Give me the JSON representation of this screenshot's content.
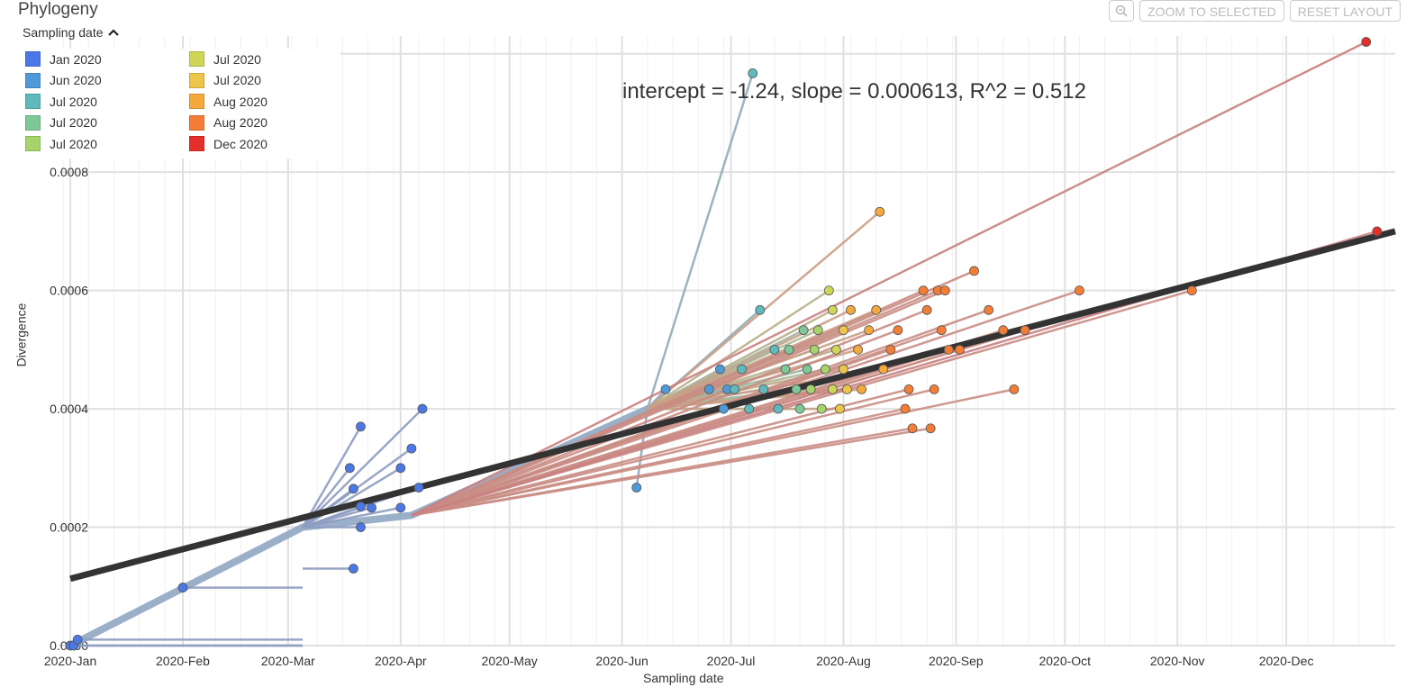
{
  "header": {
    "title": "Phylogeny",
    "zoom_icon": "magnifier-minus-icon",
    "zoom_selected_label": "ZOOM TO SELECTED",
    "reset_layout_label": "RESET LAYOUT"
  },
  "legend": {
    "toggle_label": "Sampling date",
    "toggle_icon": "chevron-up-icon",
    "items": [
      {
        "label": "Jan 2020",
        "color": "#4b78e6"
      },
      {
        "label": "Jun 2020",
        "color": "#4e9ad8"
      },
      {
        "label": "Jul 2020",
        "color": "#5fb9bd"
      },
      {
        "label": "Jul 2020",
        "color": "#7ec897"
      },
      {
        "label": "Jul 2020",
        "color": "#a6d46a"
      },
      {
        "label": "Jul 2020",
        "color": "#cfd556"
      },
      {
        "label": "Jul 2020",
        "color": "#edc54a"
      },
      {
        "label": "Aug 2020",
        "color": "#f5a93d"
      },
      {
        "label": "Aug 2020",
        "color": "#f47d35"
      },
      {
        "label": "Dec 2020",
        "color": "#e3302a"
      }
    ]
  },
  "regression_label": "intercept = -1.24, slope = 0.000613, R^2 = 0.512",
  "chart_data": {
    "type": "scatter",
    "title": "",
    "xlabel": "Sampling date",
    "ylabel": "Divergence",
    "x_ticks": [
      "2020-Jan",
      "2020-Feb",
      "2020-Mar",
      "2020-Apr",
      "2020-May",
      "2020-Jun",
      "2020-Jul",
      "2020-Aug",
      "2020-Sep",
      "2020-Oct",
      "2020-Nov",
      "2020-Dec"
    ],
    "y_ticks": [
      "0.0000",
      "0.0002",
      "0.0004",
      "0.0006",
      "0.0008",
      "0.0010"
    ],
    "xlim": [
      "2019-12-30",
      "2020-12-31"
    ],
    "ylim": [
      0,
      0.00103
    ],
    "grid": true,
    "regression": {
      "intercept": -1.24,
      "slope": 0.000613,
      "r2": 0.512,
      "line": [
        [
          "2020-01-01",
          0.000113
        ],
        [
          "2020-12-31",
          0.0007
        ]
      ]
    },
    "point_colors": {
      "jan": "#4b78e6",
      "jun": "#4e9ad8",
      "jul1": "#5fb9bd",
      "jul2": "#7ec897",
      "jul3": "#a6d46a",
      "jul4": "#cfd556",
      "jul5": "#edc54a",
      "aug1": "#f5a93d",
      "aug2": "#f47d35",
      "dec": "#e3302a"
    },
    "points": [
      {
        "date": "2020-01-01",
        "div": 0.0,
        "c": "jan"
      },
      {
        "date": "2020-01-02",
        "div": 0.0,
        "c": "jan"
      },
      {
        "date": "2020-01-03",
        "div": 1e-05,
        "c": "jan"
      },
      {
        "date": "2020-02-01",
        "div": 9.8e-05,
        "c": "jan"
      },
      {
        "date": "2020-03-18",
        "div": 0.0003,
        "c": "jan"
      },
      {
        "date": "2020-03-19",
        "div": 0.00013,
        "c": "jan"
      },
      {
        "date": "2020-03-19",
        "div": 0.000265,
        "c": "jan"
      },
      {
        "date": "2020-03-21",
        "div": 0.00037,
        "c": "jan"
      },
      {
        "date": "2020-03-21",
        "div": 0.000235,
        "c": "jan"
      },
      {
        "date": "2020-03-21",
        "div": 0.0002,
        "c": "jan"
      },
      {
        "date": "2020-03-24",
        "div": 0.000233,
        "c": "jan"
      },
      {
        "date": "2020-04-01",
        "div": 0.0003,
        "c": "jan"
      },
      {
        "date": "2020-04-01",
        "div": 0.000233,
        "c": "jan"
      },
      {
        "date": "2020-04-04",
        "div": 0.000333,
        "c": "jan"
      },
      {
        "date": "2020-04-06",
        "div": 0.000267,
        "c": "jan"
      },
      {
        "date": "2020-04-07",
        "div": 0.0004,
        "c": "jan"
      },
      {
        "date": "2020-06-05",
        "div": 0.000267,
        "c": "jun"
      },
      {
        "date": "2020-06-13",
        "div": 0.000433,
        "c": "jun"
      },
      {
        "date": "2020-06-25",
        "div": 0.000433,
        "c": "jun"
      },
      {
        "date": "2020-06-28",
        "div": 0.000467,
        "c": "jun"
      },
      {
        "date": "2020-06-29",
        "div": 0.0004,
        "c": "jun"
      },
      {
        "date": "2020-06-30",
        "div": 0.000433,
        "c": "jun"
      },
      {
        "date": "2020-07-02",
        "div": 0.000433,
        "c": "jul1"
      },
      {
        "date": "2020-07-04",
        "div": 0.000467,
        "c": "jul1"
      },
      {
        "date": "2020-07-06",
        "div": 0.0004,
        "c": "jul1"
      },
      {
        "date": "2020-07-07",
        "div": 0.000967,
        "c": "jul1"
      },
      {
        "date": "2020-07-09",
        "div": 0.000567,
        "c": "jul1"
      },
      {
        "date": "2020-07-10",
        "div": 0.000433,
        "c": "jul1"
      },
      {
        "date": "2020-07-13",
        "div": 0.0005,
        "c": "jul1"
      },
      {
        "date": "2020-07-14",
        "div": 0.0004,
        "c": "jul1"
      },
      {
        "date": "2020-07-16",
        "div": 0.000467,
        "c": "jul2"
      },
      {
        "date": "2020-07-17",
        "div": 0.0005,
        "c": "jul2"
      },
      {
        "date": "2020-07-19",
        "div": 0.000433,
        "c": "jul2"
      },
      {
        "date": "2020-07-20",
        "div": 0.0004,
        "c": "jul2"
      },
      {
        "date": "2020-07-21",
        "div": 0.000533,
        "c": "jul2"
      },
      {
        "date": "2020-07-22",
        "div": 0.000467,
        "c": "jul2"
      },
      {
        "date": "2020-07-23",
        "div": 0.000433,
        "c": "jul3"
      },
      {
        "date": "2020-07-24",
        "div": 0.0005,
        "c": "jul3"
      },
      {
        "date": "2020-07-25",
        "div": 0.000533,
        "c": "jul3"
      },
      {
        "date": "2020-07-26",
        "div": 0.0004,
        "c": "jul3"
      },
      {
        "date": "2020-07-27",
        "div": 0.000467,
        "c": "jul3"
      },
      {
        "date": "2020-07-28",
        "div": 0.0006,
        "c": "jul4"
      },
      {
        "date": "2020-07-29",
        "div": 0.000567,
        "c": "jul4"
      },
      {
        "date": "2020-07-29",
        "div": 0.000433,
        "c": "jul4"
      },
      {
        "date": "2020-07-30",
        "div": 0.0005,
        "c": "jul4"
      },
      {
        "date": "2020-07-31",
        "div": 0.0004,
        "c": "jul5"
      },
      {
        "date": "2020-08-01",
        "div": 0.000533,
        "c": "jul5"
      },
      {
        "date": "2020-08-01",
        "div": 0.000467,
        "c": "jul5"
      },
      {
        "date": "2020-08-02",
        "div": 0.000433,
        "c": "jul5"
      },
      {
        "date": "2020-08-03",
        "div": 0.000567,
        "c": "aug1"
      },
      {
        "date": "2020-08-05",
        "div": 0.0005,
        "c": "aug1"
      },
      {
        "date": "2020-08-06",
        "div": 0.000433,
        "c": "aug1"
      },
      {
        "date": "2020-08-08",
        "div": 0.000533,
        "c": "aug1"
      },
      {
        "date": "2020-08-10",
        "div": 0.000567,
        "c": "aug1"
      },
      {
        "date": "2020-08-11",
        "div": 0.000733,
        "c": "aug1"
      },
      {
        "date": "2020-08-12",
        "div": 0.000467,
        "c": "aug1"
      },
      {
        "date": "2020-08-14",
        "div": 0.0005,
        "c": "aug2"
      },
      {
        "date": "2020-08-16",
        "div": 0.000533,
        "c": "aug2"
      },
      {
        "date": "2020-08-18",
        "div": 0.0004,
        "c": "aug2"
      },
      {
        "date": "2020-08-19",
        "div": 0.000433,
        "c": "aug2"
      },
      {
        "date": "2020-08-20",
        "div": 0.000367,
        "c": "aug2"
      },
      {
        "date": "2020-08-23",
        "div": 0.0006,
        "c": "aug2"
      },
      {
        "date": "2020-08-24",
        "div": 0.000567,
        "c": "aug2"
      },
      {
        "date": "2020-08-25",
        "div": 0.000367,
        "c": "aug2"
      },
      {
        "date": "2020-08-26",
        "div": 0.000433,
        "c": "aug2"
      },
      {
        "date": "2020-08-27",
        "div": 0.0006,
        "c": "aug2"
      },
      {
        "date": "2020-08-28",
        "div": 0.000533,
        "c": "aug2"
      },
      {
        "date": "2020-08-29",
        "div": 0.0006,
        "c": "aug2"
      },
      {
        "date": "2020-08-30",
        "div": 0.0005,
        "c": "aug2"
      },
      {
        "date": "2020-09-02",
        "div": 0.0005,
        "c": "aug2"
      },
      {
        "date": "2020-09-06",
        "div": 0.000633,
        "c": "aug2"
      },
      {
        "date": "2020-09-10",
        "div": 0.000567,
        "c": "aug2"
      },
      {
        "date": "2020-09-14",
        "div": 0.000533,
        "c": "aug2"
      },
      {
        "date": "2020-09-17",
        "div": 0.000433,
        "c": "aug2"
      },
      {
        "date": "2020-09-20",
        "div": 0.000533,
        "c": "aug2"
      },
      {
        "date": "2020-10-05",
        "div": 0.0006,
        "c": "aug2"
      },
      {
        "date": "2020-11-05",
        "div": 0.0006,
        "c": "aug2"
      },
      {
        "date": "2020-12-23",
        "div": 0.00102,
        "c": "dec"
      },
      {
        "date": "2020-12-26",
        "div": 0.0007,
        "c": "dec"
      }
    ]
  }
}
